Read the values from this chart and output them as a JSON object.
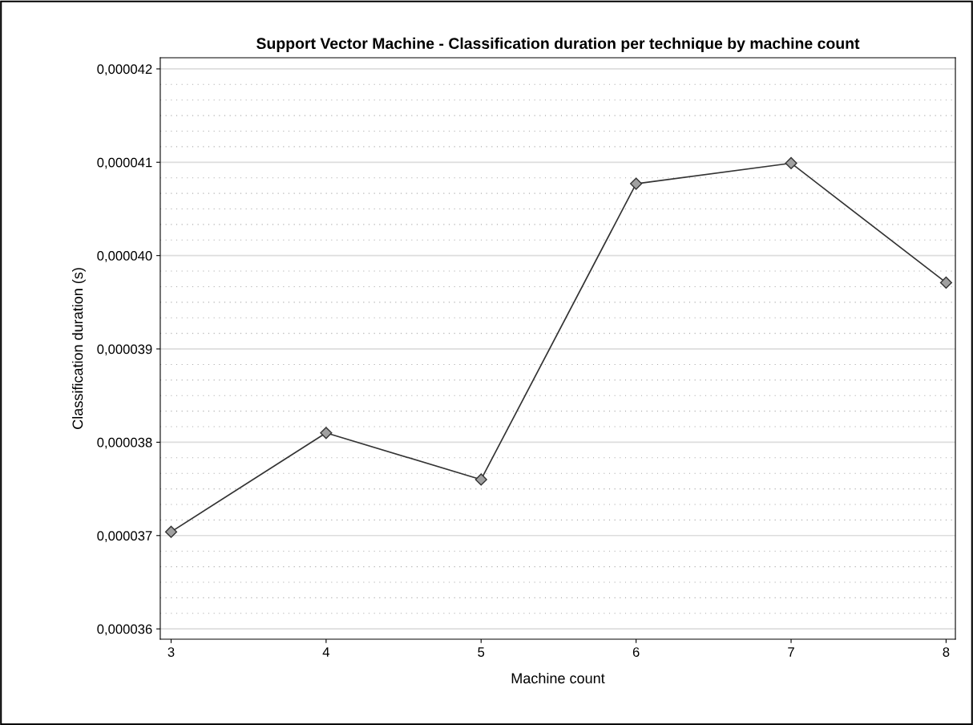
{
  "chart_data": {
    "type": "line",
    "title": "Support Vector Machine - Classification duration per technique by machine count",
    "xlabel": "Machine count",
    "ylabel": "Classification duration (s)",
    "x": [
      3,
      4,
      5,
      6,
      7,
      8
    ],
    "series": [
      {
        "color": "#333333",
        "values": [
          3.704e-05,
          3.81e-05,
          3.76e-05,
          4.077e-05,
          4.099e-05,
          3.971e-05
        ]
      }
    ],
    "xlim": [
      2.93,
      8.06
    ],
    "xticks": [
      3,
      4,
      5,
      6,
      7,
      8
    ],
    "ylim": [
      3.589e-05,
      4.212e-05
    ],
    "yticks": [
      {
        "value": 3.6e-05,
        "label": "0,000036"
      },
      {
        "value": 3.7e-05,
        "label": "0,000037"
      },
      {
        "value": 3.8e-05,
        "label": "0,000038"
      },
      {
        "value": 3.9e-05,
        "label": "0,000039"
      },
      {
        "value": 4e-05,
        "label": "0,000040"
      },
      {
        "value": 4.1e-05,
        "label": "0,000041"
      },
      {
        "value": 4.2e-05,
        "label": "0,000042"
      }
    ],
    "grid": "y",
    "marker": "diamond",
    "line_style": "solid",
    "legend": false
  }
}
